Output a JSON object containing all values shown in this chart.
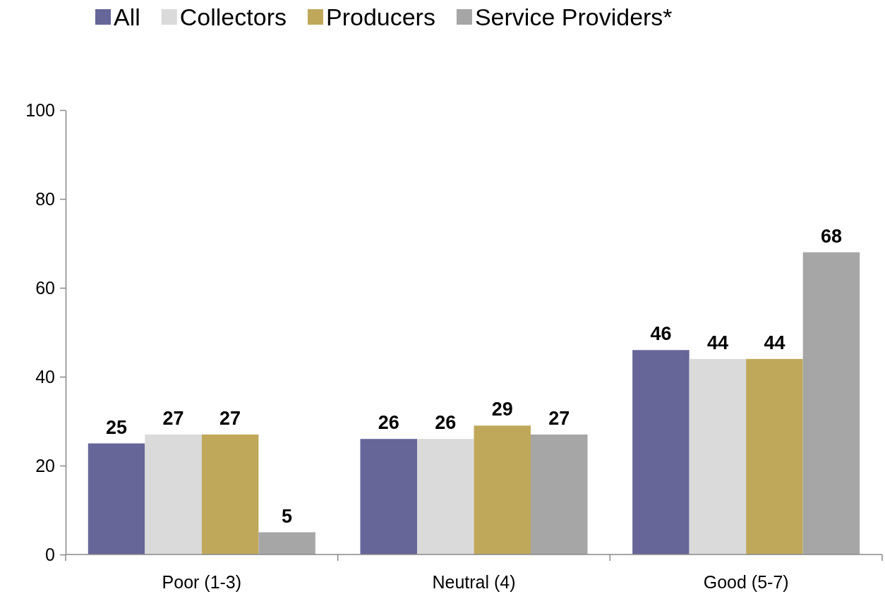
{
  "chart_data": {
    "type": "bar",
    "categories": [
      "Poor (1-3)",
      "Neutral (4)",
      "Good (5-7)"
    ],
    "series": [
      {
        "name": "All",
        "color": "#666699",
        "values": [
          25,
          26,
          46
        ]
      },
      {
        "name": "Collectors",
        "color": "#dadada",
        "values": [
          27,
          26,
          44
        ]
      },
      {
        "name": "Producers",
        "color": "#bfa85a",
        "values": [
          27,
          29,
          44
        ]
      },
      {
        "name": "Service Providers*",
        "color": "#a6a6a6",
        "values": [
          5,
          27,
          68
        ]
      }
    ],
    "ylim": [
      0,
      100
    ],
    "yticks": [
      0,
      20,
      40,
      60,
      80,
      100
    ],
    "grid": false,
    "legend": "top",
    "data_labels": true
  }
}
